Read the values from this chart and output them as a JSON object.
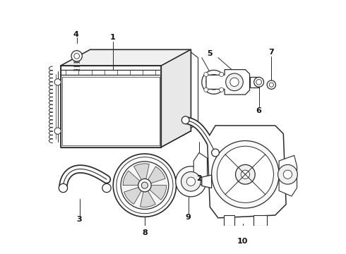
{
  "background": "#ffffff",
  "line_color": "#2a2a2a",
  "label_color": "#111111",
  "figsize": [
    4.9,
    3.6
  ],
  "dpi": 100,
  "lw": 0.9
}
